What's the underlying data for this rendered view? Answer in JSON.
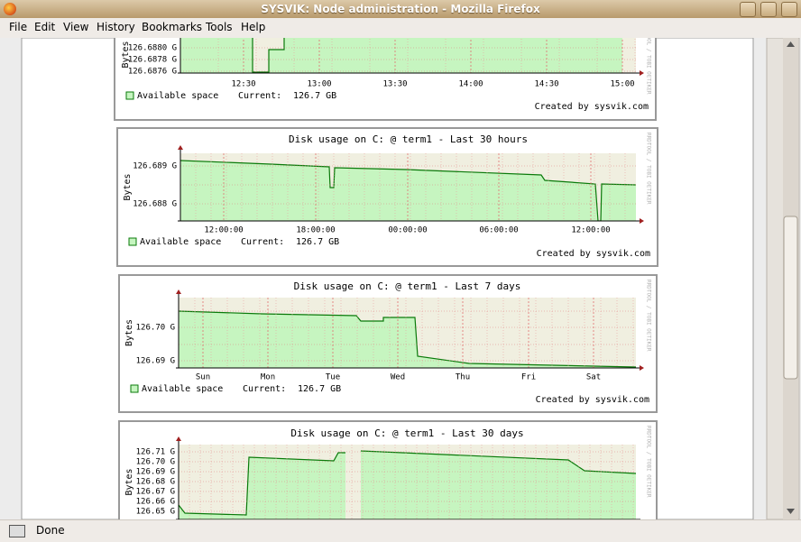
{
  "window": {
    "title": "SYSVIK: Node administration - Mozilla Firefox"
  },
  "menu": [
    "File",
    "Edit",
    "View",
    "History",
    "Bookmarks",
    "Tools",
    "Help"
  ],
  "graphs": [
    {
      "y_label": "Bytes",
      "yticks": [
        "126.6880 G",
        "126.6878 G",
        "126.6876 G"
      ],
      "xticks": [
        "12:30",
        "13:00",
        "13:30",
        "14:00",
        "14:30",
        "15:00"
      ],
      "legend": "Available space",
      "current_label": "Current:",
      "current_value": "126.7 GB",
      "credit": "Created by sysvik.com",
      "watermark": "RRDTOOL / TOBI OETIKER"
    },
    {
      "title": "Disk usage on C: @ term1 - Last 30 hours",
      "y_label": "Bytes",
      "yticks": [
        "126.689 G",
        "126.688 G"
      ],
      "xticks": [
        "12:00:00",
        "18:00:00",
        "00:00:00",
        "06:00:00",
        "12:00:00"
      ],
      "legend": "Available space",
      "current_label": "Current:",
      "current_value": "126.7 GB",
      "credit": "Created by sysvik.com",
      "watermark": "RRDTOOL / TOBI OETIKER"
    },
    {
      "title": "Disk usage on C: @ term1 - Last 7 days",
      "y_label": "Bytes",
      "yticks": [
        "126.70 G",
        "126.69 G"
      ],
      "xticks": [
        "Sun",
        "Mon",
        "Tue",
        "Wed",
        "Thu",
        "Fri",
        "Sat"
      ],
      "legend": "Available space",
      "current_label": "Current:",
      "current_value": "126.7 GB",
      "credit": "Created by sysvik.com",
      "watermark": "RRDTOOL / TOBI OETIKER"
    },
    {
      "title": "Disk usage on C: @ term1 - Last 30 days",
      "y_label": "Bytes",
      "yticks": [
        "126.71 G",
        "126.70 G",
        "126.69 G",
        "126.68 G",
        "126.67 G",
        "126.66 G",
        "126.65 G"
      ],
      "watermark": "RRDTOOL / TOBI OETIKER"
    }
  ],
  "status": "Done"
}
